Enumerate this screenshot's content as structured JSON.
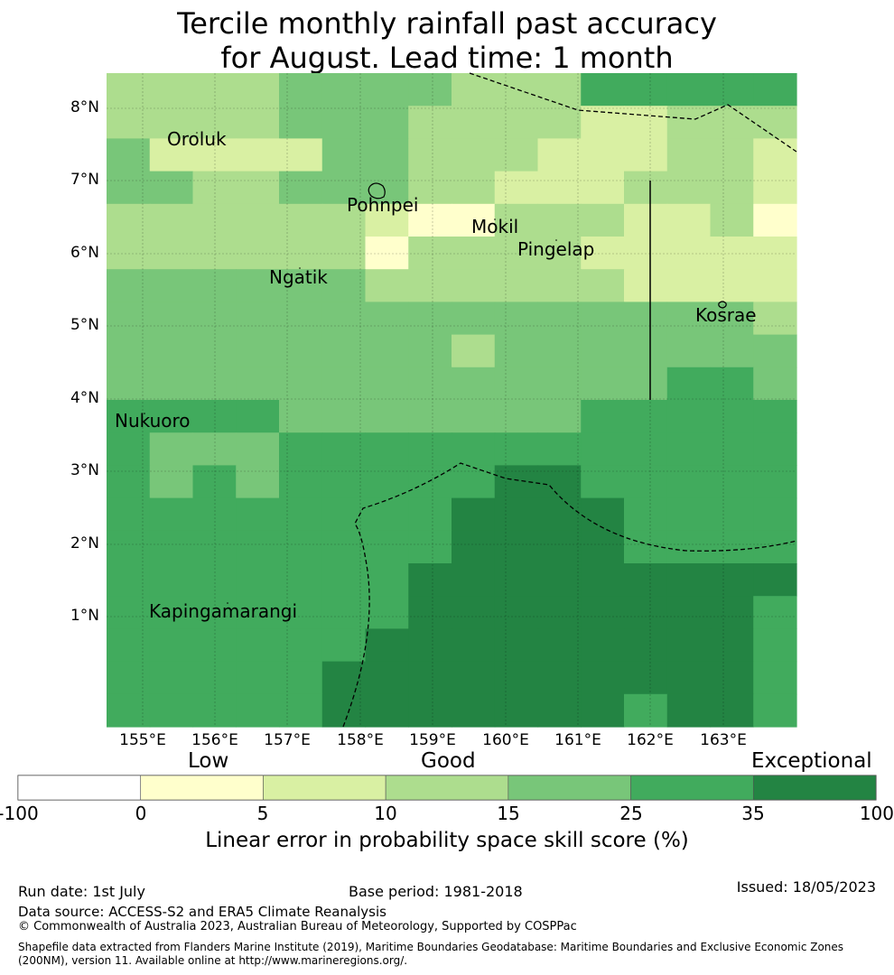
{
  "title": {
    "line1": "Tercile monthly rainfall past accuracy",
    "line2": "for August. Lead time: 1 month"
  },
  "map": {
    "lat_ticks": [
      "8°N",
      "7°N",
      "6°N",
      "5°N",
      "4°N",
      "3°N",
      "2°N",
      "1°N"
    ],
    "lon_ticks": [
      "155°E",
      "156°E",
      "157°E",
      "158°E",
      "159°E",
      "160°E",
      "161°E",
      "162°E",
      "163°E"
    ],
    "places": [
      {
        "key": "oroluk",
        "name": "Oroluk"
      },
      {
        "key": "pohnpei",
        "name": "Pohnpei"
      },
      {
        "key": "mokil",
        "name": "Mokil"
      },
      {
        "key": "pingelap",
        "name": "Pingelap"
      },
      {
        "key": "ngatik",
        "name": "Ngatik"
      },
      {
        "key": "kosrae",
        "name": "Kosrae"
      },
      {
        "key": "nukuoro",
        "name": "Nukuoro"
      },
      {
        "key": "kapingamarangi",
        "name": "Kapingamarangi"
      }
    ],
    "grid_class_rows_top_to_bottom": [
      "3333444433355555",
      "3333444333322333",
      "4222244333222332",
      "4433444332223332",
      "3333332113332231",
      "3333331333322222",
      "4444443333332222",
      "4444444444444443",
      "4444444434444444",
      "4444444444444554",
      "5555444444455555",
      "5444555555555555",
      "5454555556655555",
      "5555555566665555",
      "5555555566665555",
      "5555555666666666",
      "5555555666666665",
      "5555556666666665",
      "5555566666666665",
      "5555566666665665"
    ]
  },
  "colorbar": {
    "category_labels": [
      "Low",
      "Good",
      "Exceptional"
    ],
    "ticks": [
      "-100",
      "0",
      "5",
      "10",
      "15",
      "25",
      "35",
      "100"
    ],
    "colors": [
      "#ffffff",
      "#ffffcc",
      "#d9f0a3",
      "#addd8e",
      "#78c679",
      "#41ab5d",
      "#238443"
    ],
    "label": "Linear error in probability space skill score (%)"
  },
  "footer": {
    "run_date": "Run date: 1st July",
    "base_period": "Base period: 1981-2018",
    "issued": "Issued: 18/05/2023",
    "data_source": "Data source: ACCESS-S2 and ERA5 Climate Reanalysis",
    "copyright": "© Commonwealth of Australia 2023, Australian Bureau of Meteorology, Supported by COSPPac",
    "shapefile_line1": "Shapefile data extracted from Flanders Marine Institute (2019), Maritime Boundaries Geodatabase: Maritime Boundaries and Exclusive Economic Zones",
    "shapefile_line2": "(200NM), version 11. Available online at http://www.marineregions.org/."
  }
}
